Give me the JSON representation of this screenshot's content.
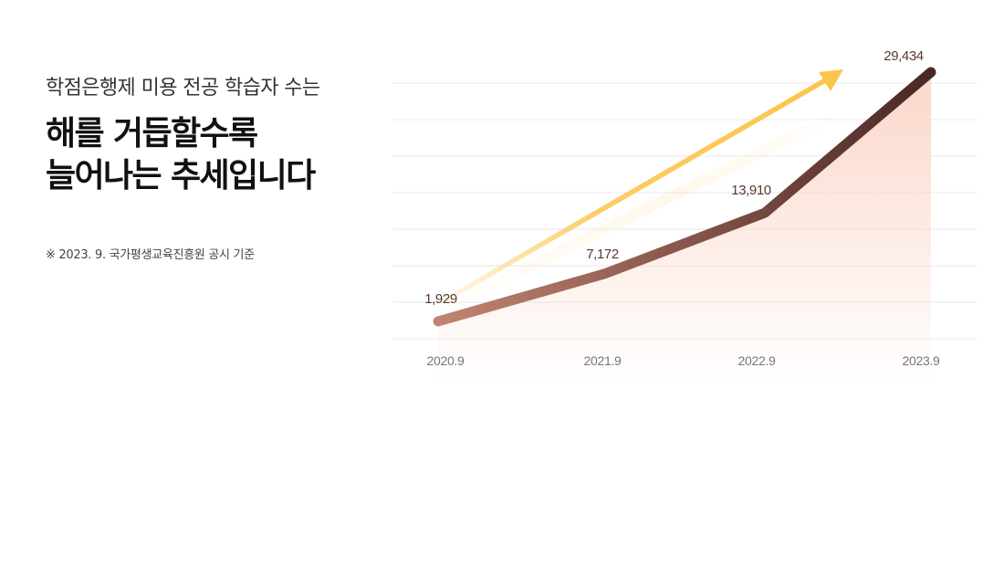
{
  "header": {
    "subtitle": "학점은행제 미용 전공 학습자 수는",
    "headline_line1": "해를 거듭할수록",
    "headline_line2": "늘어나는 추세입니다",
    "note": "※ 2023. 9. 국가평생교육진흥원 공시 기준"
  },
  "colors": {
    "line_start": "#c28472",
    "line_end": "#4a2824",
    "arrow": "#fcc44a",
    "area": "#fbd7c9",
    "grid": "#e9e9e9",
    "value_label": "#5a3a2e",
    "tick_label": "#777777"
  },
  "chart_data": {
    "type": "area",
    "categories": [
      "2020.9",
      "2021.9",
      "2022.9",
      "2023.9"
    ],
    "values": [
      1929,
      7172,
      13910,
      29434
    ],
    "data_labels": [
      "1,929",
      "7,172",
      "13,910",
      "29,434"
    ],
    "ylim": [
      0,
      30000
    ],
    "grid": true,
    "trend_arrow": true
  }
}
